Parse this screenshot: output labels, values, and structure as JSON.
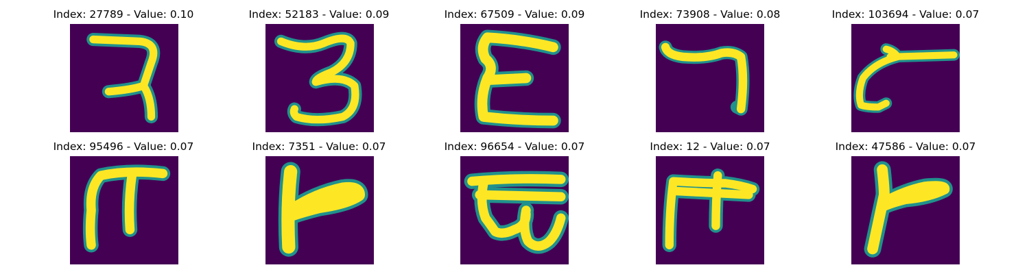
{
  "colors": {
    "background": "#440154",
    "edge": "#21918c",
    "stroke": "#fde725",
    "mid": "#5ec962"
  },
  "panels": [
    {
      "title": "Index: 27789 - Value: 0.10",
      "glyph": "ra-like"
    },
    {
      "title": "Index: 52183 - Value: 0.09",
      "glyph": "three-like"
    },
    {
      "title": "Index: 67509 - Value: 0.09",
      "glyph": "E-like"
    },
    {
      "title": "Index: 73908 - Value: 0.08",
      "glyph": "seven-like"
    },
    {
      "title": "Index: 103694 - Value: 0.07",
      "glyph": "c-with-bar"
    },
    {
      "title": "Index: 95496 - Value: 0.07",
      "glyph": "pi-like"
    },
    {
      "title": "Index: 7351 - Value: 0.07",
      "glyph": "left-bar-with-arm"
    },
    {
      "title": "Index: 96654 - Value: 0.07",
      "glyph": "box-with-loop"
    },
    {
      "title": "Index: 12 - Value: 0.07",
      "glyph": "F-like"
    },
    {
      "title": "Index: 47586 - Value: 0.07",
      "glyph": "Y-lean"
    }
  ]
}
